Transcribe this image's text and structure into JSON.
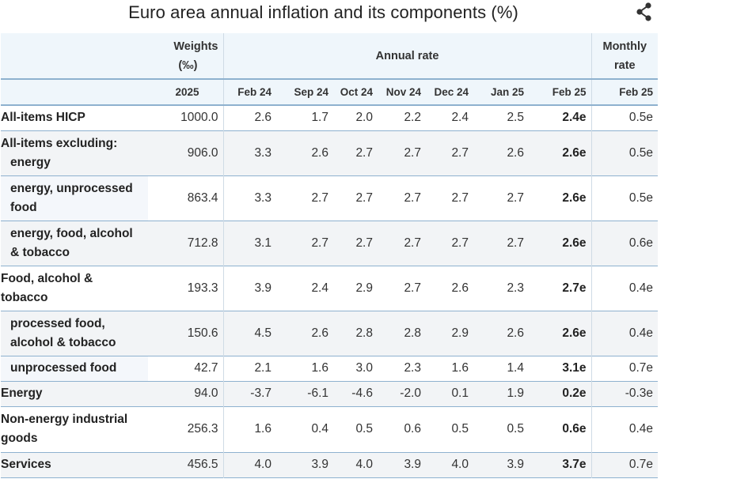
{
  "title": "Euro area annual inflation and its components (%)",
  "share_icon": "share-icon",
  "header": {
    "weights_line1": "Weights",
    "weights_line2": "(‰)",
    "annual_rate": "Annual rate",
    "monthly_line1": "Monthly",
    "monthly_line2": "rate",
    "weight_year": "2025",
    "annual_periods": [
      "Feb 24",
      "Sep 24",
      "Oct 24",
      "Nov 24",
      "Dec 24",
      "Jan 25",
      "Feb 25"
    ],
    "monthly_period": "Feb 25"
  },
  "rows": [
    {
      "label_1": "All-items HICP",
      "label_2": "",
      "weight": "1000.0",
      "values": [
        "2.6",
        "1.7",
        "2.0",
        "2.2",
        "2.4",
        "2.5",
        "2.4e"
      ],
      "monthly": "0.5e"
    },
    {
      "label_1": "All-items excluding:",
      "label_2": "energy",
      "weight": "906.0",
      "values": [
        "3.3",
        "2.6",
        "2.7",
        "2.7",
        "2.7",
        "2.6",
        "2.6e"
      ],
      "monthly": "0.5e"
    },
    {
      "label_1": "energy, unprocessed",
      "label_2": "food",
      "weight": "863.4",
      "values": [
        "3.3",
        "2.7",
        "2.7",
        "2.7",
        "2.7",
        "2.7",
        "2.6e"
      ],
      "monthly": "0.5e"
    },
    {
      "label_1": "energy, food, alcohol",
      "label_2": "& tobacco",
      "weight": "712.8",
      "values": [
        "3.1",
        "2.7",
        "2.7",
        "2.7",
        "2.7",
        "2.7",
        "2.6e"
      ],
      "monthly": "0.6e"
    },
    {
      "label_1": "Food, alcohol &",
      "label_2": "tobacco",
      "weight": "193.3",
      "values": [
        "3.9",
        "2.4",
        "2.9",
        "2.7",
        "2.6",
        "2.3",
        "2.7e"
      ],
      "monthly": "0.4e"
    },
    {
      "label_1": "processed food,",
      "label_2": "alcohol & tobacco",
      "weight": "150.6",
      "values": [
        "4.5",
        "2.6",
        "2.8",
        "2.8",
        "2.9",
        "2.6",
        "2.6e"
      ],
      "monthly": "0.4e"
    },
    {
      "label_1": "unprocessed food",
      "label_2": "",
      "weight": "42.7",
      "values": [
        "2.1",
        "1.6",
        "3.0",
        "2.3",
        "1.6",
        "1.4",
        "3.1e"
      ],
      "monthly": "0.7e"
    },
    {
      "label_1": "Energy",
      "label_2": "",
      "weight": "94.0",
      "values": [
        "-3.7",
        "-6.1",
        "-4.6",
        "-2.0",
        "0.1",
        "1.9",
        "0.2e"
      ],
      "monthly": "-0.3e"
    },
    {
      "label_1": "Non-energy industrial",
      "label_2": "goods",
      "weight": "256.3",
      "values": [
        "1.6",
        "0.4",
        "0.5",
        "0.6",
        "0.5",
        "0.5",
        "0.6e"
      ],
      "monthly": "0.4e"
    },
    {
      "label_1": "Services",
      "label_2": "",
      "weight": "456.5",
      "values": [
        "4.0",
        "3.9",
        "4.0",
        "3.9",
        "4.0",
        "3.9",
        "3.7e"
      ],
      "monthly": "0.7e"
    }
  ]
}
